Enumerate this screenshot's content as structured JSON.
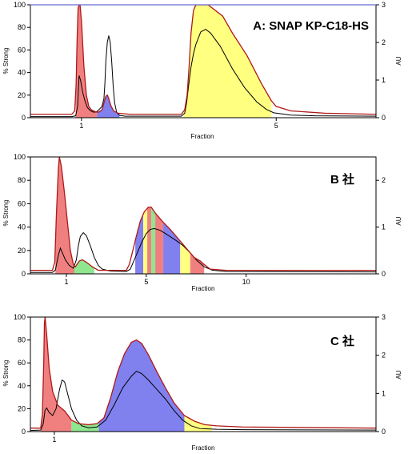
{
  "chart_data": [
    {
      "type": "area",
      "title": "A: SNAP KP-C18-HS",
      "xlabel": "Fraction",
      "ylabel_left": "% Strong",
      "ylabel_right": "AU",
      "ylim_left": [
        0,
        100
      ],
      "ylim_right": [
        0,
        3
      ],
      "yticks_left": [
        "0",
        "20",
        "40",
        "60",
        "80",
        "100"
      ],
      "yticks_right": [
        "0",
        "1",
        "2",
        "3"
      ],
      "xticks": [
        {
          "label": "1",
          "x": 1
        },
        {
          "label": "5",
          "x": 5
        }
      ],
      "xlim": [
        -0.05,
        7.05
      ],
      "fractions": [
        {
          "fraction": 1,
          "from": 0.88,
          "to": 1.32,
          "color": "#f08080"
        },
        {
          "fraction": 2,
          "from": 1.32,
          "to": 1.78,
          "color": "#8080ef"
        },
        {
          "fraction": 3,
          "from": 3.1,
          "to": 4.9,
          "color": "#ffff80"
        }
      ],
      "uv_au": [
        [
          -0.05,
          0.03
        ],
        [
          0.8,
          0.03
        ],
        [
          0.88,
          0.05
        ],
        [
          0.92,
          0.3
        ],
        [
          0.95,
          1.12
        ],
        [
          0.98,
          1.0
        ],
        [
          1.02,
          0.7
        ],
        [
          1.07,
          0.45
        ],
        [
          1.12,
          0.27
        ],
        [
          1.18,
          0.19
        ],
        [
          1.24,
          0.15
        ],
        [
          1.3,
          0.15
        ],
        [
          1.35,
          0.2
        ],
        [
          1.42,
          0.3
        ],
        [
          1.46,
          0.5
        ],
        [
          1.48,
          0.9
        ],
        [
          1.5,
          1.5
        ],
        [
          1.53,
          2.0
        ],
        [
          1.56,
          2.18
        ],
        [
          1.59,
          2.0
        ],
        [
          1.62,
          1.5
        ],
        [
          1.65,
          0.85
        ],
        [
          1.68,
          0.4
        ],
        [
          1.72,
          0.15
        ],
        [
          1.78,
          0.06
        ],
        [
          1.9,
          0.04
        ],
        [
          3.05,
          0.04
        ],
        [
          3.12,
          0.12
        ],
        [
          3.16,
          0.4
        ],
        [
          3.2,
          0.85
        ],
        [
          3.25,
          1.35
        ],
        [
          3.3,
          1.7
        ],
        [
          3.35,
          1.95
        ],
        [
          3.45,
          2.28
        ],
        [
          3.55,
          2.35
        ],
        [
          3.65,
          2.25
        ],
        [
          3.85,
          1.9
        ],
        [
          4.1,
          1.3
        ],
        [
          4.35,
          0.8
        ],
        [
          4.6,
          0.42
        ],
        [
          4.8,
          0.22
        ],
        [
          4.95,
          0.13
        ],
        [
          5.3,
          0.07
        ],
        [
          5.8,
          0.05
        ],
        [
          7.05,
          0.04
        ]
      ],
      "gradient_pct": [
        [
          -0.05,
          3
        ],
        [
          0.8,
          3
        ],
        [
          0.86,
          6
        ],
        [
          0.89,
          30
        ],
        [
          0.91,
          70
        ],
        [
          0.93,
          97
        ],
        [
          0.95,
          100
        ],
        [
          0.97,
          100
        ],
        [
          1.0,
          85
        ],
        [
          1.05,
          45
        ],
        [
          1.1,
          20
        ],
        [
          1.15,
          10
        ],
        [
          1.2,
          7
        ],
        [
          1.3,
          5
        ],
        [
          1.36,
          5
        ],
        [
          1.42,
          7
        ],
        [
          1.46,
          13
        ],
        [
          1.5,
          19
        ],
        [
          1.53,
          20
        ],
        [
          1.56,
          17
        ],
        [
          1.6,
          11
        ],
        [
          1.66,
          6
        ],
        [
          1.75,
          4
        ],
        [
          2.0,
          3
        ],
        [
          3.05,
          3
        ],
        [
          3.12,
          7
        ],
        [
          3.17,
          20
        ],
        [
          3.21,
          45
        ],
        [
          3.25,
          75
        ],
        [
          3.3,
          95
        ],
        [
          3.35,
          100
        ],
        [
          3.6,
          100
        ],
        [
          3.9,
          90
        ],
        [
          4.1,
          75
        ],
        [
          4.4,
          55
        ],
        [
          4.7,
          30
        ],
        [
          4.9,
          15
        ],
        [
          5.0,
          10
        ],
        [
          5.3,
          6
        ],
        [
          6.0,
          4
        ],
        [
          7.05,
          3
        ]
      ]
    },
    {
      "type": "area",
      "title": "B 社",
      "xlabel": "Fraction",
      "ylabel_left": "% Strong",
      "ylabel_right": "AU",
      "ylim_left": [
        0,
        100
      ],
      "ylim_right": [
        0,
        2.5
      ],
      "yticks_left": [
        "0",
        "20",
        "40",
        "60",
        "80",
        "100"
      ],
      "yticks_right": [
        "0",
        "1",
        "2"
      ],
      "xticks": [
        {
          "label": "1",
          "x": 1
        },
        {
          "label": "5",
          "x": 5
        },
        {
          "label": "10",
          "x": 10
        }
      ],
      "xlim": [
        -0.8,
        16.5
      ],
      "fractions": [
        {
          "fraction": 1,
          "from": 0.45,
          "to": 1.4,
          "color": "#f08080"
        },
        {
          "fraction": 2,
          "from": 1.4,
          "to": 2.4,
          "color": "#8ee68e"
        },
        {
          "fraction": 3,
          "from": 4.45,
          "to": 4.85,
          "color": "#8080ef"
        },
        {
          "fraction": 4,
          "from": 4.85,
          "to": 5.05,
          "color": "#ffff80"
        },
        {
          "fraction": 5,
          "from": 5.05,
          "to": 5.25,
          "color": "#f08080"
        },
        {
          "fraction": 6,
          "from": 5.25,
          "to": 5.45,
          "color": "#8ee68e"
        },
        {
          "fraction": 7,
          "from": 5.45,
          "to": 5.85,
          "color": "#f08080"
        },
        {
          "fraction": 8,
          "from": 5.85,
          "to": 6.7,
          "color": "#8080ef"
        },
        {
          "fraction": 9,
          "from": 6.7,
          "to": 7.2,
          "color": "#ffff80"
        },
        {
          "fraction": 10,
          "from": 7.2,
          "to": 7.9,
          "color": "#f08080"
        }
      ],
      "uv_au": [
        [
          -0.8,
          0.03
        ],
        [
          0.3,
          0.03
        ],
        [
          0.45,
          0.08
        ],
        [
          0.6,
          0.4
        ],
        [
          0.7,
          0.55
        ],
        [
          0.8,
          0.45
        ],
        [
          0.95,
          0.3
        ],
        [
          1.15,
          0.18
        ],
        [
          1.35,
          0.12
        ],
        [
          1.5,
          0.3
        ],
        [
          1.6,
          0.6
        ],
        [
          1.7,
          0.8
        ],
        [
          1.85,
          0.88
        ],
        [
          2.0,
          0.82
        ],
        [
          2.2,
          0.6
        ],
        [
          2.4,
          0.35
        ],
        [
          2.6,
          0.18
        ],
        [
          2.8,
          0.1
        ],
        [
          3.2,
          0.06
        ],
        [
          4.0,
          0.05
        ],
        [
          4.2,
          0.1
        ],
        [
          4.4,
          0.3
        ],
        [
          4.6,
          0.5
        ],
        [
          4.8,
          0.7
        ],
        [
          5.0,
          0.86
        ],
        [
          5.2,
          0.95
        ],
        [
          5.4,
          0.97
        ],
        [
          5.7,
          0.93
        ],
        [
          6.0,
          0.85
        ],
        [
          6.4,
          0.74
        ],
        [
          6.8,
          0.62
        ],
        [
          7.2,
          0.45
        ],
        [
          7.5,
          0.3
        ],
        [
          7.9,
          0.15
        ],
        [
          8.3,
          0.08
        ],
        [
          9.0,
          0.05
        ],
        [
          16.5,
          0.04
        ]
      ],
      "gradient_pct": [
        [
          -0.8,
          3
        ],
        [
          0.3,
          3
        ],
        [
          0.42,
          10
        ],
        [
          0.5,
          50
        ],
        [
          0.6,
          90
        ],
        [
          0.65,
          100
        ],
        [
          0.75,
          92
        ],
        [
          0.9,
          70
        ],
        [
          1.05,
          45
        ],
        [
          1.2,
          20
        ],
        [
          1.35,
          8
        ],
        [
          1.45,
          6
        ],
        [
          1.65,
          11
        ],
        [
          1.8,
          12
        ],
        [
          2.0,
          10
        ],
        [
          2.3,
          6
        ],
        [
          2.6,
          3
        ],
        [
          4.0,
          3
        ],
        [
          4.15,
          8
        ],
        [
          4.3,
          18
        ],
        [
          4.5,
          32
        ],
        [
          4.7,
          45
        ],
        [
          4.9,
          53
        ],
        [
          5.1,
          57
        ],
        [
          5.25,
          57
        ],
        [
          5.45,
          52
        ],
        [
          5.8,
          45
        ],
        [
          6.2,
          38
        ],
        [
          6.6,
          30
        ],
        [
          7.0,
          22
        ],
        [
          7.4,
          14
        ],
        [
          7.7,
          11
        ],
        [
          7.9,
          8
        ],
        [
          8.2,
          4
        ],
        [
          9.0,
          3
        ],
        [
          16.5,
          3
        ]
      ]
    },
    {
      "type": "area",
      "title": "C 社",
      "xlabel": "Fraction",
      "ylabel_left": "% Strong",
      "ylabel_right": "AU",
      "ylim_left": [
        0,
        100
      ],
      "ylim_right": [
        0,
        3
      ],
      "yticks_left": [
        "0",
        "20",
        "40",
        "60",
        "80",
        "100"
      ],
      "yticks_right": [
        "0",
        "1",
        "2",
        "3"
      ],
      "xticks": [
        {
          "label": "1",
          "x": 1
        }
      ],
      "xlim": [
        -0.4,
        19.8
      ],
      "fractions": [
        {
          "fraction": 1,
          "from": 0.2,
          "to": 2.0,
          "color": "#f08080"
        },
        {
          "fraction": 2,
          "from": 2.0,
          "to": 3.6,
          "color": "#8ee68e"
        },
        {
          "fraction": 3,
          "from": 3.6,
          "to": 8.6,
          "color": "#8080ef"
        },
        {
          "fraction": 4,
          "from": 8.6,
          "to": 10.2,
          "color": "#ffff80"
        }
      ],
      "uv_au": [
        [
          -0.4,
          0.03
        ],
        [
          0.2,
          0.04
        ],
        [
          0.35,
          0.2
        ],
        [
          0.45,
          0.55
        ],
        [
          0.55,
          0.62
        ],
        [
          0.7,
          0.5
        ],
        [
          0.9,
          0.42
        ],
        [
          1.1,
          0.6
        ],
        [
          1.3,
          1.1
        ],
        [
          1.45,
          1.35
        ],
        [
          1.6,
          1.3
        ],
        [
          1.8,
          0.95
        ],
        [
          2.0,
          0.6
        ],
        [
          2.3,
          0.3
        ],
        [
          2.6,
          0.15
        ],
        [
          3.0,
          0.1
        ],
        [
          3.5,
          0.12
        ],
        [
          4.0,
          0.3
        ],
        [
          4.5,
          0.7
        ],
        [
          5.0,
          1.15
        ],
        [
          5.5,
          1.45
        ],
        [
          5.8,
          1.58
        ],
        [
          6.1,
          1.52
        ],
        [
          6.5,
          1.35
        ],
        [
          7.0,
          1.1
        ],
        [
          7.5,
          0.85
        ],
        [
          8.0,
          0.55
        ],
        [
          8.5,
          0.3
        ],
        [
          9.0,
          0.15
        ],
        [
          9.5,
          0.08
        ],
        [
          10.5,
          0.06
        ],
        [
          12.0,
          0.05
        ],
        [
          19.8,
          0.04
        ]
      ],
      "gradient_pct": [
        [
          -0.4,
          3
        ],
        [
          0.2,
          3
        ],
        [
          0.3,
          15
        ],
        [
          0.38,
          60
        ],
        [
          0.42,
          95
        ],
        [
          0.46,
          100
        ],
        [
          0.55,
          85
        ],
        [
          0.7,
          55
        ],
        [
          0.9,
          35
        ],
        [
          1.2,
          23
        ],
        [
          1.6,
          18
        ],
        [
          2.0,
          10
        ],
        [
          2.4,
          7
        ],
        [
          3.0,
          6
        ],
        [
          3.5,
          7
        ],
        [
          3.9,
          12
        ],
        [
          4.3,
          30
        ],
        [
          4.7,
          52
        ],
        [
          5.1,
          68
        ],
        [
          5.5,
          78
        ],
        [
          5.8,
          80
        ],
        [
          6.1,
          77
        ],
        [
          6.5,
          67
        ],
        [
          7.0,
          52
        ],
        [
          7.5,
          38
        ],
        [
          8.0,
          25
        ],
        [
          8.6,
          14
        ],
        [
          9.2,
          9
        ],
        [
          9.8,
          6
        ],
        [
          10.5,
          5
        ],
        [
          12.0,
          4
        ],
        [
          19.8,
          3
        ]
      ]
    }
  ]
}
